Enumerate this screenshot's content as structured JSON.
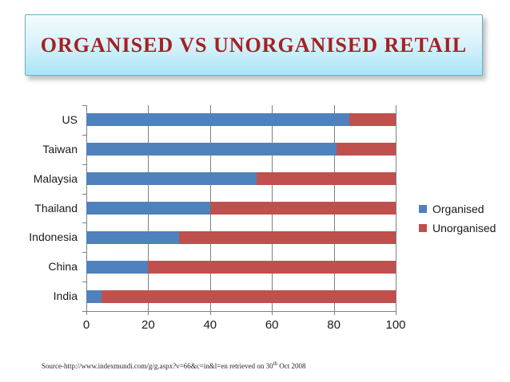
{
  "slide": {
    "title": "ORGANISED VS UNORGANISED RETAIL",
    "source": {
      "prefix": "Source-http://www.indexmundi.com/g/g.aspx?v=66&c=in&l=en retrieved on 30",
      "superscript": "th",
      "suffix": " Oct 2008"
    }
  },
  "chart_data": {
    "type": "bar",
    "orientation": "horizontal",
    "stacked": true,
    "title": "",
    "xlabel": "",
    "ylabel": "",
    "categories": [
      "US",
      "Taiwan",
      "Malaysia",
      "Thailand",
      "Indonesia",
      "China",
      "India"
    ],
    "series": [
      {
        "name": "Organised",
        "color": "#4F81BD",
        "values": [
          85,
          81,
          55,
          40,
          30,
          20,
          5
        ]
      },
      {
        "name": "Unorganised",
        "color": "#C0504D",
        "values": [
          15,
          19,
          45,
          60,
          70,
          80,
          95
        ]
      }
    ],
    "xlim": [
      0,
      100
    ],
    "x_ticks": [
      0,
      20,
      40,
      60,
      80,
      100
    ],
    "grid": true,
    "gridline_color": "#7F7F7F",
    "legend_position": "right"
  }
}
